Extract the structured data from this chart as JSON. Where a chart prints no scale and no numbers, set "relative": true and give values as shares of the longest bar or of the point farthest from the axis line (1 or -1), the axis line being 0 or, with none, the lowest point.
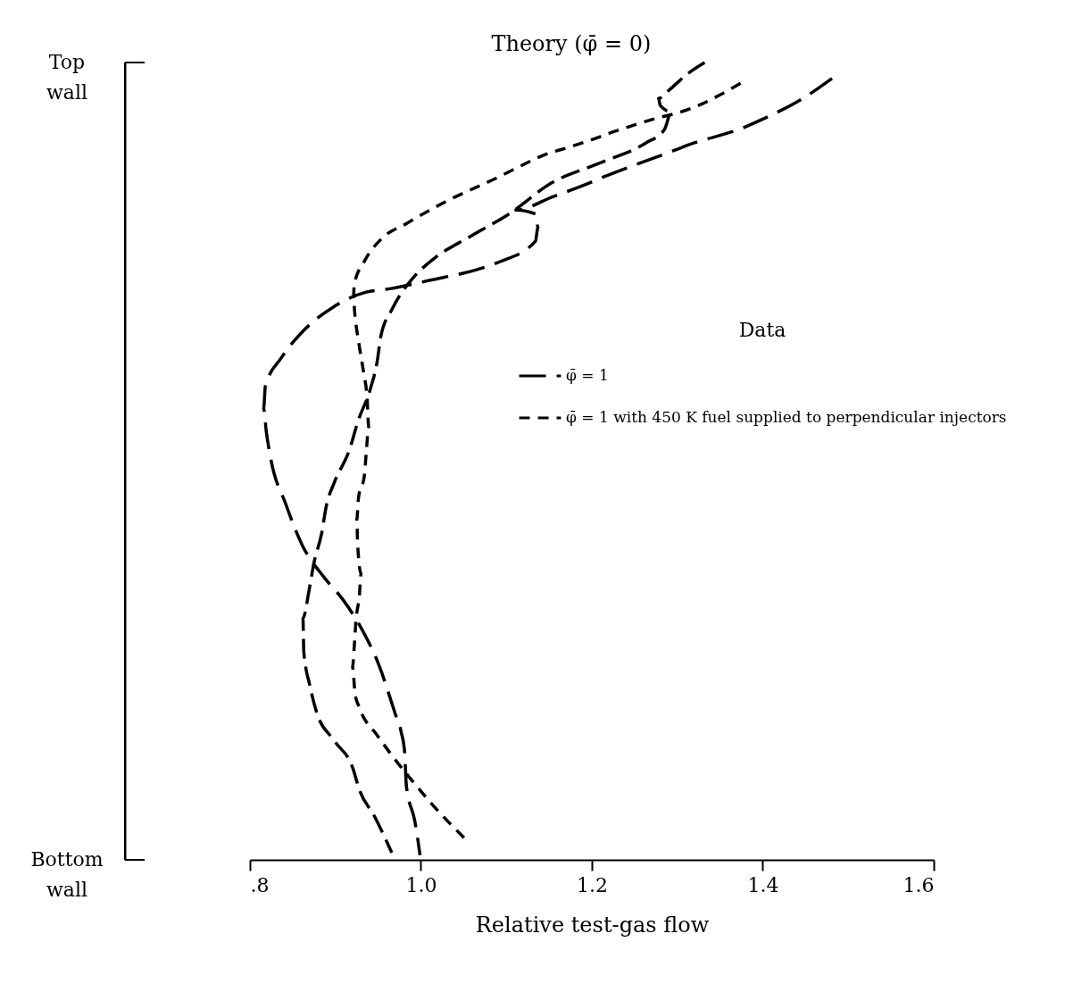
{
  "chart_data": {
    "type": "line",
    "xlabel": "Relative test-gas flow",
    "legend_title": "Data",
    "legend": "right",
    "line_style": "dashed",
    "xlim": [
      0.8,
      1.6
    ],
    "xticks": [
      {
        "value": 0.8,
        "label": ".8"
      },
      {
        "value": 1.0,
        "label": "1.0"
      },
      {
        "value": 1.2,
        "label": "1.2"
      },
      {
        "value": 1.4,
        "label": "1.4"
      },
      {
        "value": 1.6,
        "label": "1.6"
      }
    ],
    "relative": true,
    "annotations": [
      {
        "text": "Theory (φ̄ = 0)",
        "x": 1.332,
        "y": 1.0
      },
      "Top wall",
      "Bottom wall"
    ],
    "series": [
      {
        "color": "#000000",
        "x": [
          1.332,
          1.311,
          1.291,
          1.278,
          1.28,
          1.293,
          1.285,
          1.263,
          1.207,
          1.153,
          1.103,
          1.058,
          1.014,
          0.991,
          0.967,
          0.953,
          0.949,
          0.941,
          0.927,
          0.916,
          0.899,
          0.889,
          0.884,
          0.875,
          0.869,
          0.862,
          0.863,
          0.87,
          0.878,
          0.899,
          0.921,
          0.927,
          0.946,
          0.966
        ],
        "values": [
          1.0,
          0.985,
          0.966,
          0.955,
          0.946,
          0.938,
          0.916,
          0.899,
          0.873,
          0.849,
          0.81,
          0.782,
          0.753,
          0.73,
          0.692,
          0.656,
          0.626,
          0.591,
          0.552,
          0.513,
          0.474,
          0.442,
          0.41,
          0.373,
          0.337,
          0.303,
          0.261,
          0.219,
          0.185,
          0.149,
          0.113,
          0.091,
          0.054,
          0.009
        ]
      },
      {
        "name": "φ̄ = 1",
        "color": "#000000",
        "x": [
          1.481,
          1.447,
          1.4,
          1.379,
          1.314,
          1.287,
          1.215,
          1.188,
          1.155,
          1.111,
          1.134,
          1.137,
          1.134,
          1.092,
          1.071,
          1.011,
          0.962,
          0.936,
          0.897,
          0.863,
          0.837,
          0.818,
          0.816,
          0.819,
          0.824,
          0.842,
          0.861,
          0.887,
          0.909,
          0.93,
          0.951,
          0.97,
          0.977,
          0.981,
          0.983,
          0.993,
          0.999
        ],
        "values": [
          0.98,
          0.955,
          0.929,
          0.919,
          0.897,
          0.886,
          0.857,
          0.845,
          0.832,
          0.815,
          0.81,
          0.793,
          0.776,
          0.75,
          0.742,
          0.727,
          0.716,
          0.712,
          0.693,
          0.664,
          0.63,
          0.594,
          0.566,
          0.538,
          0.505,
          0.446,
          0.395,
          0.354,
          0.326,
          0.291,
          0.244,
          0.183,
          0.16,
          0.135,
          0.093,
          0.048,
          0.006
        ]
      },
      {
        "name": "φ̄ = 1 with 450 K fuel supplied to perpendicular injectors",
        "color": "#000000",
        "x": [
          1.374,
          1.351,
          1.329,
          1.301,
          1.272,
          1.242,
          1.225,
          1.194,
          1.174,
          1.144,
          1.118,
          1.092,
          1.03,
          0.983,
          0.954,
          0.934,
          0.922,
          0.921,
          0.923,
          0.928,
          0.933,
          0.937,
          0.939,
          0.936,
          0.934,
          0.927,
          0.925,
          0.926,
          0.93,
          0.928,
          0.924,
          0.922,
          0.92,
          0.923,
          0.928,
          0.949,
          0.964,
          0.983,
          0.993,
          1.012,
          1.03,
          1.053
        ],
        "values": [
          0.974,
          0.96,
          0.948,
          0.937,
          0.929,
          0.919,
          0.913,
          0.901,
          0.894,
          0.884,
          0.871,
          0.857,
          0.826,
          0.798,
          0.779,
          0.751,
          0.722,
          0.703,
          0.681,
          0.644,
          0.611,
          0.58,
          0.543,
          0.51,
          0.483,
          0.454,
          0.427,
          0.395,
          0.359,
          0.331,
          0.3,
          0.267,
          0.242,
          0.208,
          0.191,
          0.156,
          0.134,
          0.108,
          0.095,
          0.071,
          0.05,
          0.025
        ]
      }
    ]
  }
}
